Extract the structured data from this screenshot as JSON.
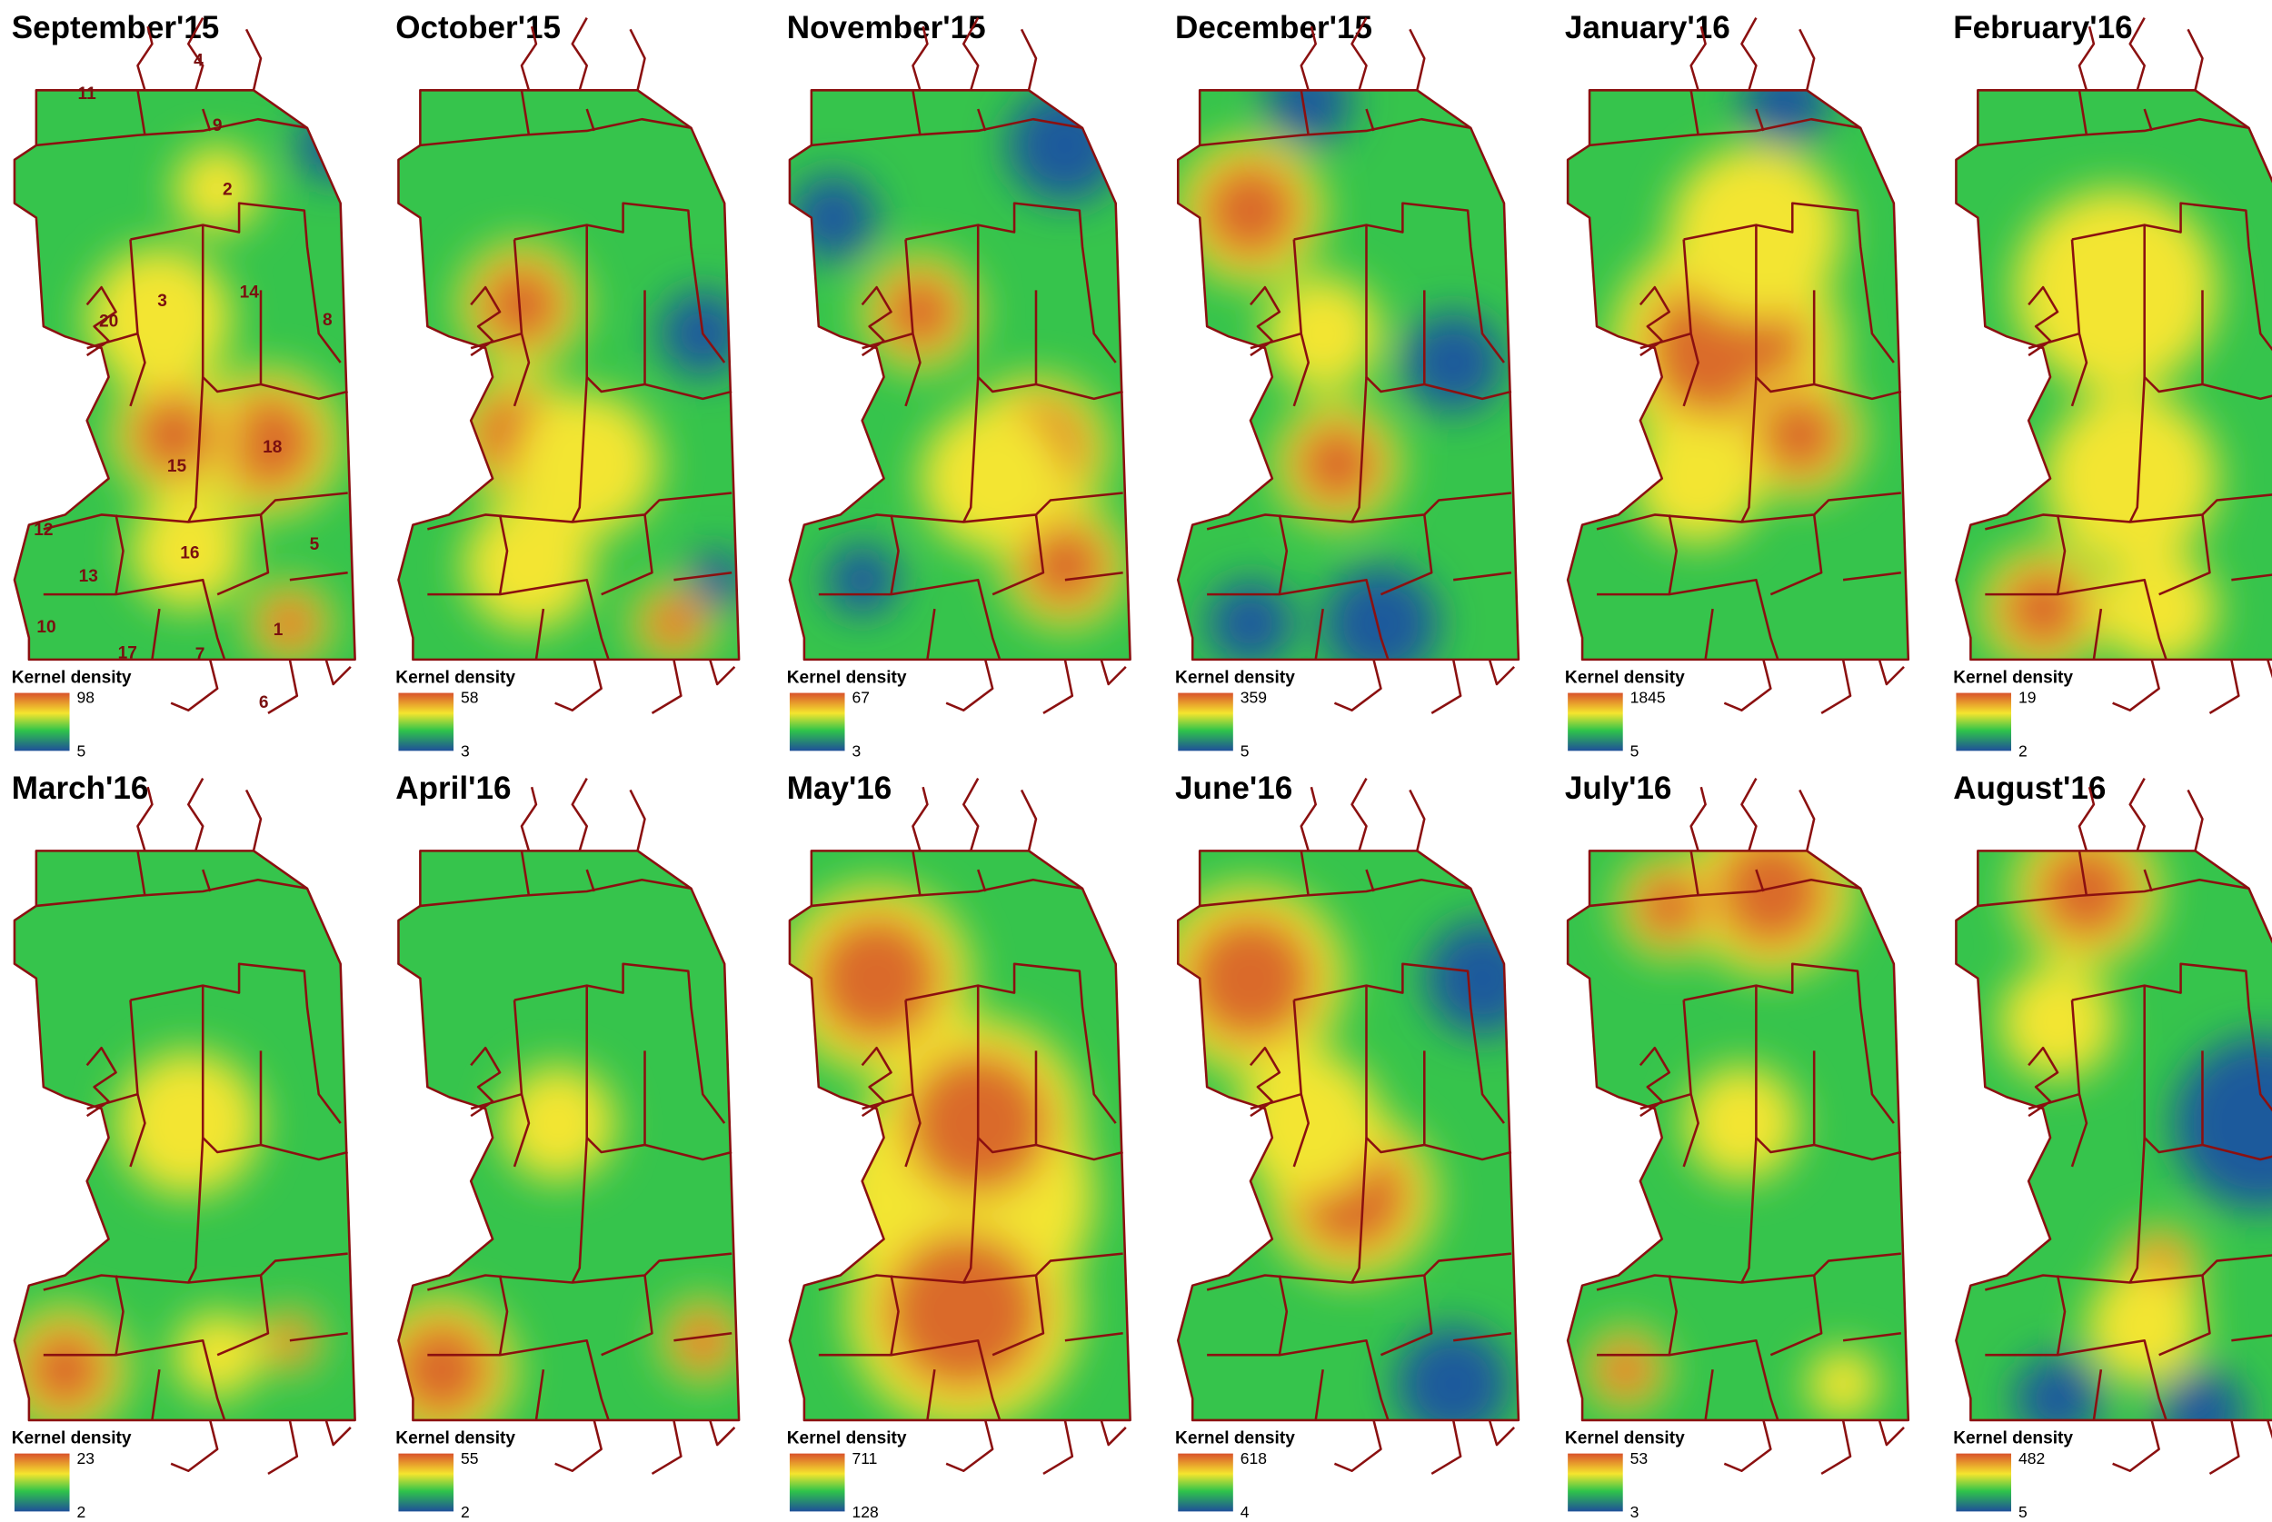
{
  "panels": [
    {
      "title": "September'15",
      "legend": {
        "title": "Kernel density",
        "max": 98,
        "min": 5
      },
      "district_labels": [
        "4",
        "11",
        "9",
        "2",
        "14",
        "3",
        "20",
        "8",
        "18",
        "15",
        "12",
        "16",
        "5",
        "13",
        "10",
        "1",
        "17",
        "7",
        "6"
      ]
    },
    {
      "title": "October'15",
      "legend": {
        "title": "Kernel density",
        "max": 58,
        "min": 3
      }
    },
    {
      "title": "November'15",
      "legend": {
        "title": "Kernel density",
        "max": 67,
        "min": 3
      }
    },
    {
      "title": "December'15",
      "legend": {
        "title": "Kernel density",
        "max": 359,
        "min": 5
      }
    },
    {
      "title": "January'16",
      "legend": {
        "title": "Kernel density",
        "max": 1845,
        "min": 5
      }
    },
    {
      "title": "February'16",
      "legend": {
        "title": "Kernel density",
        "max": 19,
        "min": 2
      }
    },
    {
      "title": "March'16",
      "legend": {
        "title": "Kernel density",
        "max": 23,
        "min": 2
      }
    },
    {
      "title": "April'16",
      "legend": {
        "title": "Kernel density",
        "max": 55,
        "min": 2
      }
    },
    {
      "title": "May'16",
      "legend": {
        "title": "Kernel density",
        "max": 711,
        "min": 128
      }
    },
    {
      "title": "June'16",
      "legend": {
        "title": "Kernel density",
        "max": 618,
        "min": 4
      }
    },
    {
      "title": "July'16",
      "legend": {
        "title": "Kernel density",
        "max": 53,
        "min": 3
      }
    },
    {
      "title": "August'16",
      "legend": {
        "title": "Kernel density",
        "max": 482,
        "min": 5
      }
    }
  ]
}
